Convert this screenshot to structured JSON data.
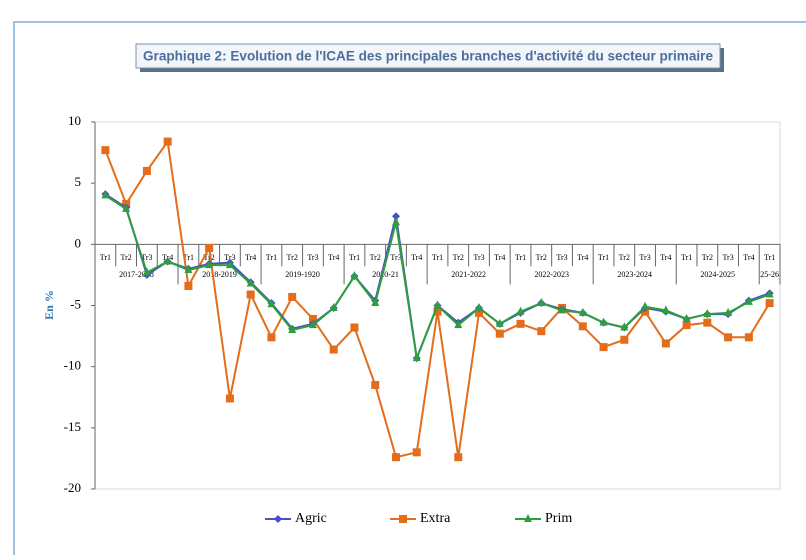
{
  "chart_data": {
    "type": "line",
    "title": "Graphique 2: Evolution de l'ICAE des principales branches d'activité du secteur primaire",
    "y_label": "En %",
    "category_groups": [
      {
        "label": "2017-2018",
        "quarters": [
          "Tr1",
          "Tr2",
          "Tr3",
          "Tr4"
        ]
      },
      {
        "label": "2018-2019",
        "quarters": [
          "Tr1",
          "Tr2",
          "Tr3",
          "Tr4"
        ]
      },
      {
        "label": "2019-1920",
        "quarters": [
          "Tr1",
          "Tr2",
          "Tr3",
          "Tr4"
        ]
      },
      {
        "label": "2020-21",
        "quarters": [
          "Tr1",
          "Tr2",
          "Tr3",
          "Tr4"
        ]
      },
      {
        "label": "2021-2022",
        "quarters": [
          "Tr1",
          "Tr2",
          "Tr3",
          "Tr4"
        ]
      },
      {
        "label": "2022-2023",
        "quarters": [
          "Tr1",
          "Tr2",
          "Tr3",
          "Tr4"
        ]
      },
      {
        "label": "2023-2024",
        "quarters": [
          "Tr1",
          "Tr2",
          "Tr3",
          "Tr4"
        ]
      },
      {
        "label": "2024-2025",
        "quarters": [
          "Tr1",
          "Tr2",
          "Tr3",
          "Tr4"
        ]
      },
      {
        "label": "25-26",
        "quarters": [
          "Tr1"
        ]
      }
    ],
    "series": [
      {
        "name": "Agric",
        "color": "#4a4fc4",
        "marker": "diamond",
        "values": [
          4.1,
          3.0,
          -2.5,
          -1.4,
          -2.0,
          -1.6,
          -1.5,
          -3.1,
          -4.8,
          -6.9,
          -6.5,
          -5.2,
          -2.6,
          -4.6,
          2.3,
          -9.3,
          -5.0,
          -6.4,
          -5.2,
          -6.5,
          -5.6,
          -4.8,
          -5.3,
          -5.6,
          -6.4,
          -6.8,
          -5.2,
          -5.5,
          -6.1,
          -5.7,
          -5.7,
          -4.6,
          -4.0
        ]
      },
      {
        "name": "Extra",
        "color": "#e46c1a",
        "marker": "square",
        "values": [
          7.7,
          3.3,
          6.0,
          8.4,
          -3.4,
          -0.3,
          -12.6,
          -4.1,
          -7.6,
          -4.3,
          -6.1,
          -8.6,
          -6.8,
          -11.5,
          -17.4,
          -17.0,
          -5.5,
          -17.4,
          -5.6,
          -7.3,
          -6.5,
          -7.1,
          -5.2,
          -6.7,
          -8.4,
          -7.8,
          -5.5,
          -8.1,
          -6.6,
          -6.4,
          -7.6,
          -7.6,
          -4.8
        ]
      },
      {
        "name": "Prim",
        "color": "#2e9e3e",
        "marker": "triangle",
        "values": [
          4.0,
          2.9,
          -2.3,
          -1.4,
          -2.1,
          -1.7,
          -1.7,
          -3.2,
          -4.9,
          -7.0,
          -6.6,
          -5.2,
          -2.6,
          -4.8,
          1.8,
          -9.3,
          -5.0,
          -6.6,
          -5.2,
          -6.5,
          -5.5,
          -4.8,
          -5.4,
          -5.6,
          -6.4,
          -6.8,
          -5.1,
          -5.4,
          -6.1,
          -5.7,
          -5.6,
          -4.7,
          -4.1
        ]
      }
    ],
    "ylim": [
      -20,
      10
    ],
    "yticks": [
      10,
      5,
      0,
      -5,
      -10,
      -15,
      -20
    ],
    "legend": "bottom"
  }
}
